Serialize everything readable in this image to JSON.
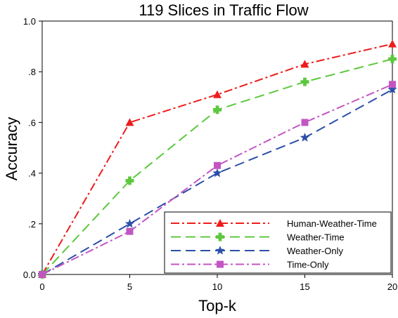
{
  "chart_data": {
    "type": "line",
    "title": "119 Slices in Traffic Flow",
    "xlabel": "Top-k",
    "ylabel": "Accuracy",
    "x": [
      0,
      5,
      10,
      15,
      20
    ],
    "x_tick_labels": [
      "0",
      "5",
      "10",
      "15",
      "20"
    ],
    "xlim": [
      0,
      20
    ],
    "ylim": [
      0,
      1
    ],
    "y_ticks": [
      0,
      0.2,
      0.4,
      0.6,
      0.8,
      1.0
    ],
    "y_tick_labels": [
      "0.0",
      ".2",
      ".4",
      ".6",
      ".8",
      "1.0"
    ],
    "grid": false,
    "legend_position": "bottom-right",
    "series": [
      {
        "name": "Human-Weather-Time",
        "values": [
          0.0,
          0.6,
          0.71,
          0.83,
          0.91
        ],
        "color": "#ee1c1c",
        "marker": "triangle",
        "dash": "dash-dot"
      },
      {
        "name": "Weather-Time",
        "values": [
          0.0,
          0.37,
          0.65,
          0.76,
          0.85
        ],
        "color": "#5cc83c",
        "marker": "cross",
        "dash": "dash"
      },
      {
        "name": "Weather-Only",
        "values": [
          0.0,
          0.2,
          0.4,
          0.54,
          0.73
        ],
        "color": "#2b4fa8",
        "marker": "star",
        "dash": "dash"
      },
      {
        "name": "Time-Only",
        "values": [
          0.0,
          0.17,
          0.43,
          0.6,
          0.75
        ],
        "color": "#c355c3",
        "marker": "square",
        "dash": "dash-dot"
      }
    ]
  }
}
